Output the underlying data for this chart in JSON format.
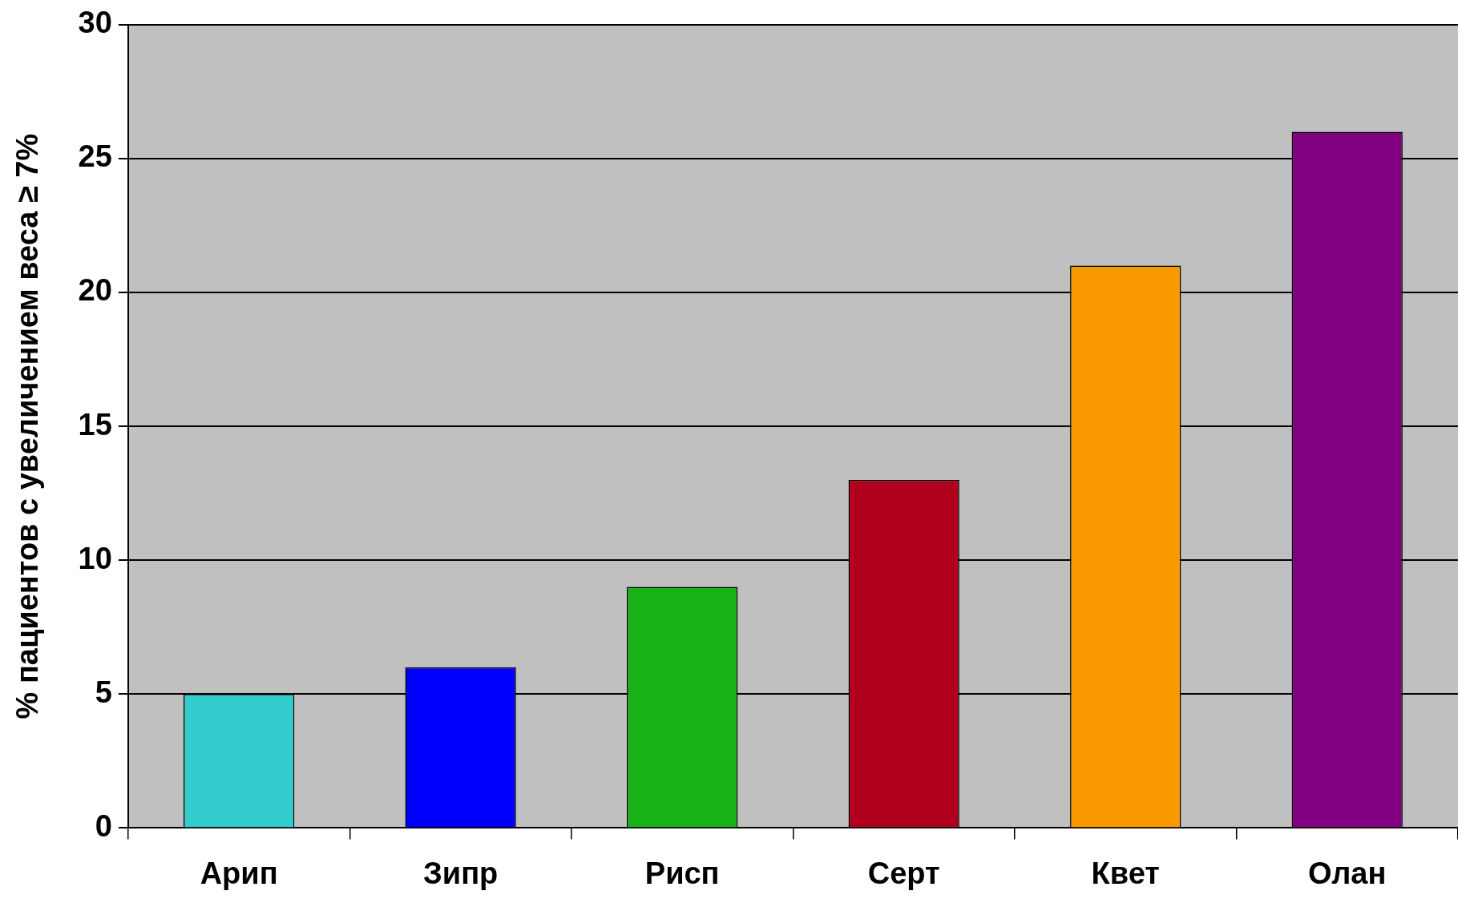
{
  "chart_data": {
    "type": "bar",
    "ylabel": "% пациентов с увеличением веса ≥ 7%",
    "categories": [
      "Арип",
      "Зипр",
      "Рисп",
      "Серт",
      "Квет",
      "Олан"
    ],
    "values": [
      5,
      6,
      9,
      13,
      21,
      26
    ],
    "colors": [
      "#33cccc",
      "#0000ff",
      "#19b319",
      "#b0001e",
      "#f99a00",
      "#800080"
    ],
    "ylim": [
      0,
      30
    ],
    "yticks": [
      0,
      5,
      10,
      15,
      20,
      25,
      30
    ],
    "grid": "y",
    "legend": false
  }
}
